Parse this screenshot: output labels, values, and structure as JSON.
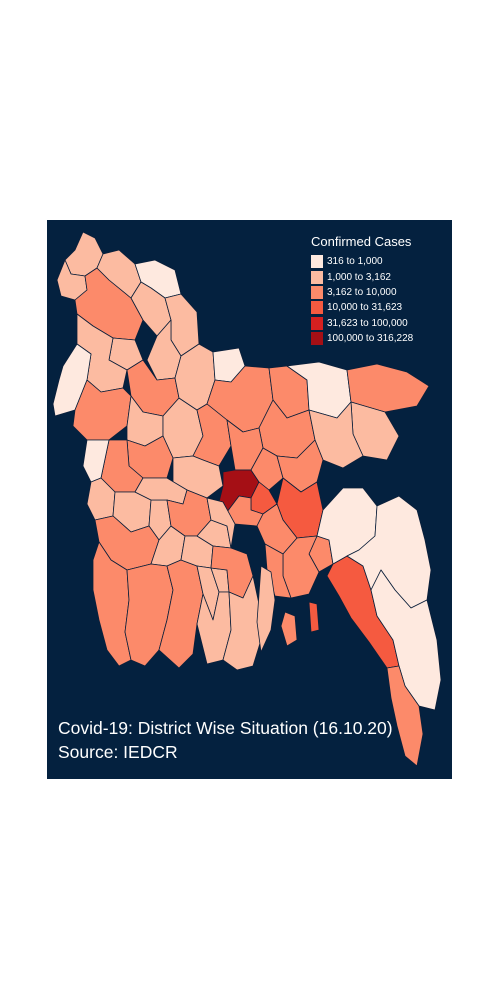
{
  "map": {
    "caption_line1": "Covid-19: District Wise Situation (16.10.20)",
    "caption_line2": "Source: IEDCR",
    "background_color": "#04213f",
    "border_color": "#0b1f3a"
  },
  "legend": {
    "title": "Confirmed Cases",
    "items": [
      {
        "label": "316 to 1,000",
        "color": "#fee9df"
      },
      {
        "label": "1,000 to 3,162",
        "color": "#fcbba1"
      },
      {
        "label": "3,162 to 10,000",
        "color": "#fc8a6a"
      },
      {
        "label": "10,000 to 31,623",
        "color": "#f55a40"
      },
      {
        "label": "31,623 to 100,000",
        "color": "#d42020"
      },
      {
        "label": "100,000 to 316,228",
        "color": "#a50f15"
      }
    ]
  }
}
